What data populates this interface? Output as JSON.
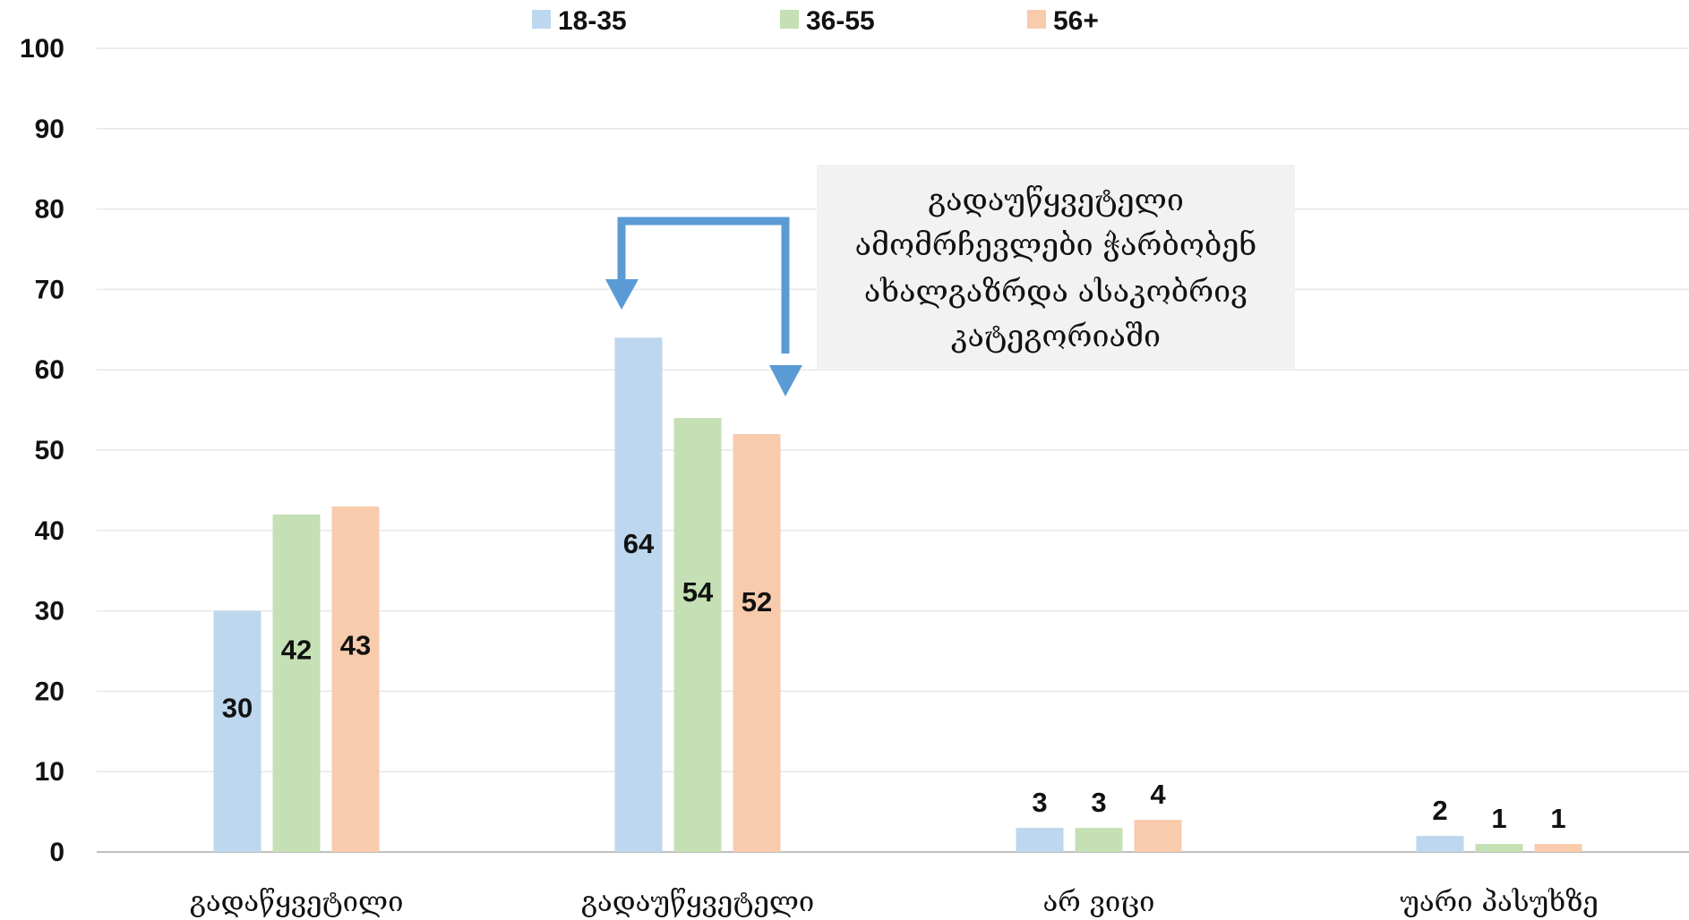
{
  "chart_data": {
    "type": "bar",
    "title": "",
    "xlabel": "",
    "ylabel": "",
    "ylim": [
      0,
      100
    ],
    "yticks": [
      0,
      10,
      20,
      30,
      40,
      50,
      60,
      70,
      80,
      90,
      100
    ],
    "grid": true,
    "legend_position": "top-center",
    "categories": [
      "გადაწყვეტილი",
      "გადაუწყვეტელი",
      "არ ვიცი",
      "უარი პასუხზე"
    ],
    "series": [
      {
        "name": "18-35",
        "color": "#bdd7ee",
        "values": [
          30,
          64,
          3,
          2
        ]
      },
      {
        "name": "36-55",
        "color": "#c5e0b4",
        "values": [
          42,
          54,
          3,
          1
        ]
      },
      {
        "name": "56+",
        "color": "#f8cbad",
        "values": [
          43,
          52,
          4,
          1
        ]
      }
    ],
    "annotation": {
      "lines": [
        "გადაუწყვეტელი",
        "ამომრჩევლები ჭარბობენ",
        "ახალგაზრდა ასაკობრივ",
        "კატეგორიაში"
      ],
      "box_color": "#f2f2f2",
      "arrow_color": "#5b9bd5"
    }
  }
}
